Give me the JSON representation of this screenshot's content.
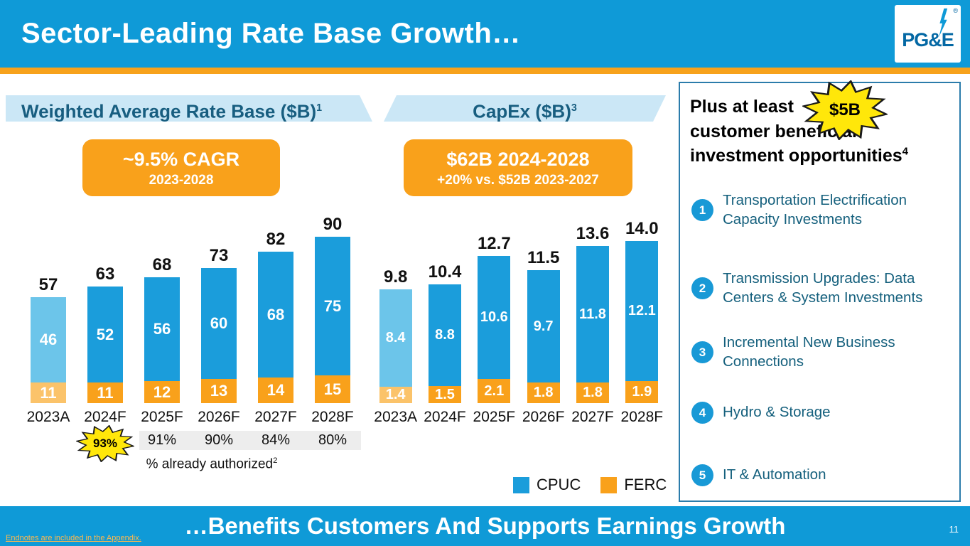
{
  "header": {
    "title": "Sector-Leading Rate Base Growth…",
    "logo_text": "PG&E",
    "logo_reg": "®"
  },
  "chart_data": [
    {
      "type": "bar",
      "stacked": true,
      "title": "Weighted Average Rate Base ($B)",
      "title_sup": "1",
      "callout_line1": "~9.5% CAGR",
      "callout_line2": "2023-2028",
      "categories": [
        "2023A",
        "2024F",
        "2025F",
        "2026F",
        "2027F",
        "2028F"
      ],
      "series": [
        {
          "name": "CPUC",
          "values": [
            "46",
            "52",
            "56",
            "60",
            "68",
            "75"
          ],
          "color": "#1b9ddb"
        },
        {
          "name": "FERC",
          "values": [
            "11",
            "11",
            "12",
            "13",
            "14",
            "15"
          ],
          "color": "#f9a11b"
        }
      ],
      "totals": [
        "57",
        "63",
        "68",
        "73",
        "82",
        "90"
      ],
      "ylim": [
        0,
        95
      ],
      "authorized_values": [
        "93%",
        "91%",
        "90%",
        "84%",
        "80%"
      ],
      "authorized_label": "% already authorized",
      "authorized_sup": "2",
      "actual_category": "2023A",
      "legend_position": "none"
    },
    {
      "type": "bar",
      "stacked": true,
      "title": "CapEx ($B)",
      "title_sup": "3",
      "callout_line1": "$62B 2024-2028",
      "callout_line2": "+20% vs. $52B 2023-2027",
      "categories": [
        "2023A",
        "2024F",
        "2025F",
        "2026F",
        "2027F",
        "2028F"
      ],
      "series": [
        {
          "name": "CPUC",
          "values": [
            "8.4",
            "8.8",
            "10.6",
            "9.7",
            "11.8",
            "12.1"
          ],
          "color": "#1b9ddb"
        },
        {
          "name": "FERC",
          "values": [
            "1.4",
            "1.5",
            "2.1",
            "1.8",
            "1.8",
            "1.9"
          ],
          "color": "#f9a11b"
        }
      ],
      "totals": [
        "9.8",
        "10.4",
        "12.7",
        "11.5",
        "13.6",
        "14.0"
      ],
      "ylim": [
        0,
        15
      ],
      "actual_category": "2023A",
      "legend_position": "bottom-right"
    }
  ],
  "legend": [
    {
      "label": "CPUC",
      "color": "#1b9ddb"
    },
    {
      "label": "FERC",
      "color": "#f9a11b"
    }
  ],
  "side_panel": {
    "heading_line1": "Plus at least",
    "badge": "$5B",
    "heading_line2": "customer beneficial",
    "heading_line3": "investment opportunities",
    "heading_sup": "4",
    "items": [
      {
        "num": "1",
        "text": "Transportation Electrification Capacity Investments"
      },
      {
        "num": "2",
        "text": "Transmission Upgrades: Data Centers & System Investments"
      },
      {
        "num": "3",
        "text": "Incremental New Business Connections"
      },
      {
        "num": "4",
        "text": "Hydro & Storage"
      },
      {
        "num": "5",
        "text": "IT & Automation"
      }
    ]
  },
  "footer": {
    "banner": "…Benefits Customers And Supports Earnings Growth",
    "endnotes": "Endnotes are included in the Appendix.",
    "page": "11"
  }
}
